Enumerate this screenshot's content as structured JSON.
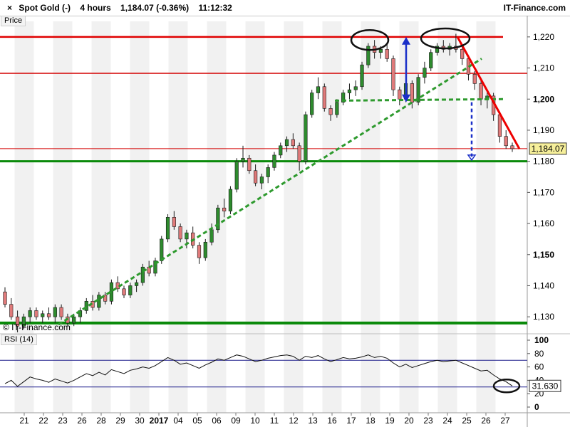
{
  "header": {
    "close_icon": "×",
    "instrument": "Spot Gold (-)",
    "timeframe": "4 hours",
    "last": "1,184.07 (-0.36%)",
    "time": "11:12:32",
    "brand": "IT-Finance.com"
  },
  "price_pane": {
    "label": "Price",
    "watermark": "© IT-Finance.com",
    "y_ticks": [
      {
        "value": 1130,
        "label": "1,130",
        "bold": false
      },
      {
        "value": 1140,
        "label": "1,140",
        "bold": false
      },
      {
        "value": 1150,
        "label": "1,150",
        "bold": true
      },
      {
        "value": 1160,
        "label": "1,160",
        "bold": false
      },
      {
        "value": 1170,
        "label": "1,170",
        "bold": false
      },
      {
        "value": 1180,
        "label": "1,180",
        "bold": false
      },
      {
        "value": 1190,
        "label": "1,190",
        "bold": false
      },
      {
        "value": 1200,
        "label": "1,200",
        "bold": true
      },
      {
        "value": 1210,
        "label": "1,210",
        "bold": false
      },
      {
        "value": 1220,
        "label": "1,220",
        "bold": false
      }
    ],
    "last_price_tag": "1,184.07"
  },
  "rsi_pane": {
    "label": "RSI (14)",
    "y_ticks": [
      {
        "value": 0,
        "label": "0",
        "bold": true
      },
      {
        "value": 20,
        "label": "20",
        "bold": false
      },
      {
        "value": 40,
        "label": "40",
        "bold": false
      },
      {
        "value": 60,
        "label": "60",
        "bold": false
      },
      {
        "value": 80,
        "label": "80",
        "bold": false
      },
      {
        "value": 100,
        "label": "100",
        "bold": true
      }
    ],
    "last_value_tag": "31.630"
  },
  "x_axis": {
    "labels": [
      {
        "i": 0,
        "text": "21",
        "bold": false
      },
      {
        "i": 1,
        "text": "22",
        "bold": false
      },
      {
        "i": 2,
        "text": "23",
        "bold": false
      },
      {
        "i": 3,
        "text": "26",
        "bold": false
      },
      {
        "i": 4,
        "text": "28",
        "bold": false
      },
      {
        "i": 5,
        "text": "29",
        "bold": false
      },
      {
        "i": 6,
        "text": "30",
        "bold": false
      },
      {
        "i": 7,
        "text": "2017",
        "bold": true
      },
      {
        "i": 8,
        "text": "04",
        "bold": false
      },
      {
        "i": 9,
        "text": "05",
        "bold": false
      },
      {
        "i": 10,
        "text": "06",
        "bold": false
      },
      {
        "i": 11,
        "text": "09",
        "bold": false
      },
      {
        "i": 12,
        "text": "10",
        "bold": false
      },
      {
        "i": 13,
        "text": "11",
        "bold": false
      },
      {
        "i": 14,
        "text": "12",
        "bold": false
      },
      {
        "i": 15,
        "text": "13",
        "bold": false
      },
      {
        "i": 16,
        "text": "16",
        "bold": false
      },
      {
        "i": 17,
        "text": "17",
        "bold": false
      },
      {
        "i": 18,
        "text": "18",
        "bold": false
      },
      {
        "i": 19,
        "text": "19",
        "bold": false
      },
      {
        "i": 20,
        "text": "20",
        "bold": false
      },
      {
        "i": 21,
        "text": "23",
        "bold": false
      },
      {
        "i": 22,
        "text": "24",
        "bold": false
      },
      {
        "i": 23,
        "text": "25",
        "bold": false
      },
      {
        "i": 24,
        "text": "26",
        "bold": false
      },
      {
        "i": 25,
        "text": "27",
        "bold": false
      }
    ]
  },
  "chart_data": {
    "type": "candlestick",
    "series_note": "",
    "ylim": [
      1125,
      1225
    ],
    "rsi_ylim": [
      0,
      100
    ],
    "candles": [
      [
        1138,
        1139.5,
        1133,
        1134
      ],
      [
        1134,
        1136,
        1129,
        1130
      ],
      [
        1130,
        1132,
        1125,
        1127
      ],
      [
        1127,
        1131,
        1126,
        1130
      ],
      [
        1130,
        1133,
        1128,
        1132
      ],
      [
        1132,
        1133,
        1129,
        1130
      ],
      [
        1130,
        1132,
        1128,
        1131
      ],
      [
        1131,
        1133,
        1129,
        1130
      ],
      [
        1130,
        1134,
        1128,
        1133
      ],
      [
        1133,
        1134,
        1129,
        1130
      ],
      [
        1130,
        1131,
        1127,
        1128
      ],
      [
        1128,
        1131,
        1127,
        1130
      ],
      [
        1130,
        1133,
        1128,
        1132
      ],
      [
        1132,
        1136,
        1131,
        1135
      ],
      [
        1135,
        1137,
        1132,
        1133
      ],
      [
        1133,
        1138,
        1132,
        1137
      ],
      [
        1137,
        1138,
        1134,
        1135
      ],
      [
        1135,
        1142,
        1134,
        1141
      ],
      [
        1141,
        1143,
        1138,
        1139
      ],
      [
        1139,
        1140,
        1136,
        1137
      ],
      [
        1137,
        1141,
        1136,
        1140
      ],
      [
        1140,
        1142,
        1138,
        1141
      ],
      [
        1141,
        1147,
        1140,
        1146
      ],
      [
        1146,
        1148,
        1143,
        1144
      ],
      [
        1144,
        1149,
        1143,
        1148
      ],
      [
        1148,
        1156,
        1147,
        1155
      ],
      [
        1155,
        1163,
        1154,
        1162
      ],
      [
        1162,
        1164,
        1158,
        1159
      ],
      [
        1159,
        1160,
        1154,
        1155
      ],
      [
        1155,
        1158,
        1152,
        1157
      ],
      [
        1157,
        1159,
        1152,
        1153
      ],
      [
        1153,
        1154,
        1147,
        1149
      ],
      [
        1149,
        1155,
        1148,
        1154
      ],
      [
        1154,
        1160,
        1153,
        1158
      ],
      [
        1158,
        1166,
        1157,
        1165
      ],
      [
        1165,
        1168,
        1162,
        1164
      ],
      [
        1164,
        1172,
        1163,
        1171
      ],
      [
        1171,
        1181,
        1170,
        1180
      ],
      [
        1180,
        1185,
        1178,
        1181
      ],
      [
        1181,
        1182,
        1176,
        1177
      ],
      [
        1177,
        1179,
        1172,
        1173
      ],
      [
        1173,
        1176,
        1171,
        1175
      ],
      [
        1175,
        1179,
        1173,
        1178
      ],
      [
        1178,
        1183,
        1177,
        1182
      ],
      [
        1182,
        1186,
        1181,
        1185
      ],
      [
        1185,
        1188,
        1183,
        1187
      ],
      [
        1187,
        1189,
        1184,
        1185
      ],
      [
        1185,
        1186,
        1177,
        1180
      ],
      [
        1180,
        1196,
        1179,
        1195
      ],
      [
        1195,
        1203,
        1194,
        1202
      ],
      [
        1202,
        1207,
        1200,
        1204
      ],
      [
        1204,
        1205,
        1196,
        1197
      ],
      [
        1197,
        1198,
        1193,
        1195
      ],
      [
        1195,
        1200,
        1194,
        1199
      ],
      [
        1199,
        1203,
        1198,
        1202
      ],
      [
        1202,
        1205,
        1200,
        1203
      ],
      [
        1203,
        1206,
        1201,
        1204
      ],
      [
        1204,
        1212,
        1203,
        1211
      ],
      [
        1211,
        1218,
        1210,
        1217
      ],
      [
        1217,
        1219,
        1213,
        1215
      ],
      [
        1215,
        1217,
        1213,
        1216
      ],
      [
        1216,
        1218,
        1212,
        1213
      ],
      [
        1213,
        1214,
        1201,
        1203
      ],
      [
        1203,
        1204,
        1198,
        1200
      ],
      [
        1200,
        1206,
        1199,
        1205
      ],
      [
        1205,
        1206,
        1197,
        1199
      ],
      [
        1199,
        1208,
        1198,
        1207
      ],
      [
        1207,
        1212,
        1205,
        1210
      ],
      [
        1210,
        1216,
        1209,
        1215
      ],
      [
        1215,
        1218,
        1214,
        1217
      ],
      [
        1217,
        1219,
        1215,
        1216
      ],
      [
        1216,
        1218,
        1214,
        1217
      ],
      [
        1217,
        1221,
        1215,
        1216
      ],
      [
        1216,
        1217,
        1211,
        1213
      ],
      [
        1213,
        1214,
        1206,
        1208
      ],
      [
        1208,
        1209,
        1203,
        1205
      ],
      [
        1205,
        1206,
        1198,
        1200
      ],
      [
        1200,
        1203,
        1197,
        1201
      ],
      [
        1201,
        1202,
        1193,
        1195
      ],
      [
        1195,
        1196,
        1186,
        1188
      ],
      [
        1188,
        1190,
        1184,
        1185
      ],
      [
        1185,
        1186,
        1183,
        1184.07
      ]
    ],
    "rsi": [
      35,
      40,
      31,
      38,
      45,
      42,
      40,
      37,
      42,
      39,
      36,
      40,
      45,
      50,
      47,
      52,
      48,
      56,
      53,
      50,
      55,
      57,
      60,
      58,
      62,
      68,
      74,
      70,
      64,
      66,
      62,
      58,
      63,
      67,
      72,
      70,
      74,
      78,
      76,
      72,
      68,
      70,
      73,
      75,
      77,
      78,
      76,
      70,
      76,
      74,
      77,
      72,
      68,
      71,
      74,
      72,
      73,
      75,
      78,
      74,
      76,
      73,
      66,
      60,
      64,
      59,
      62,
      65,
      68,
      70,
      68,
      69,
      70,
      66,
      62,
      58,
      54,
      55,
      48,
      42,
      38,
      31.63
    ],
    "horizontal_lines": [
      {
        "price": 1220,
        "color": "#e00000",
        "width": 2.5
      },
      {
        "price": 1208.3,
        "color": "#d40000",
        "width": 1.5
      },
      {
        "price": 1184.07,
        "color": "#d40000",
        "width": 1
      },
      {
        "price": 1180,
        "color": "#0a8a0a",
        "width": 3
      },
      {
        "price": 1128,
        "color": "#0a8a0a",
        "width": 4
      }
    ],
    "annotation_colors": {
      "bull": "#2e8b2e",
      "bear": "#e07a7a",
      "trend_support": "#2e9a2e",
      "trend_resistance": "#ee0000",
      "arrow": "#1a2fc8",
      "rsi_line": "#111111",
      "rsi_band": "#1a1a8a"
    }
  }
}
